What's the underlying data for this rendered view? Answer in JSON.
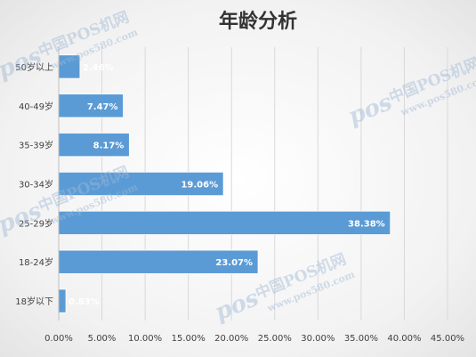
{
  "chart_data": {
    "type": "bar",
    "orientation": "horizontal",
    "title": "年龄分析",
    "xlabel": "",
    "ylabel": "",
    "categories": [
      "18岁以下",
      "18-24岁",
      "25-29岁",
      "30-34岁",
      "35-39岁",
      "40-49岁",
      "50岁以上"
    ],
    "values": [
      0.83,
      23.07,
      38.38,
      19.06,
      8.17,
      7.47,
      2.46
    ],
    "value_labels": [
      "0.83%",
      "23.07%",
      "38.38%",
      "19.06%",
      "8.17%",
      "7.47%",
      "2.46%"
    ],
    "xlim": [
      0,
      45
    ],
    "x_ticks": [
      0,
      5,
      10,
      15,
      20,
      25,
      30,
      35,
      40,
      45
    ],
    "x_tick_labels": [
      "0.00%",
      "5.00%",
      "10.00%",
      "15.00%",
      "20.00%",
      "25.00%",
      "30.00%",
      "35.00%",
      "40.00%",
      "45.00%"
    ],
    "grid": true,
    "legend": "none",
    "colors": {
      "bar": "#5b9bd5",
      "bar_label": "#ffffff",
      "grid": "#d9d9d9",
      "text": "#404040"
    }
  },
  "watermark": {
    "brand": "中国POS机网",
    "url": "www.pos580.com"
  }
}
